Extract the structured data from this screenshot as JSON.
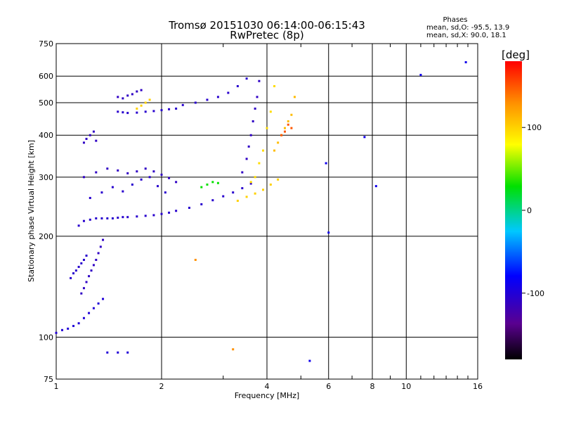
{
  "chart_data": {
    "type": "scatter",
    "title": "Tromsø 20151030 06:14:00-06:15:43",
    "subtitle": "RwPretec (8p)",
    "stats": {
      "header": "Phases",
      "line1": "mean, sd,O:  -95.5, 13.9",
      "line2": "mean, sd,X:  90.0, 18.1"
    },
    "xlabel": "Frequency [MHz]",
    "ylabel": "Stationary phase Virtual Height [km]",
    "x_scale": "log",
    "y_scale": "log",
    "xlim": [
      1,
      16
    ],
    "ylim": [
      75,
      750
    ],
    "x_ticks": [
      1,
      2,
      4,
      6,
      8,
      10,
      16
    ],
    "y_ticks": [
      75,
      100,
      200,
      300,
      400,
      500,
      600,
      750
    ],
    "grid": true,
    "colorbar": {
      "label": "[deg]",
      "range": [
        -180,
        180
      ],
      "ticks": [
        100,
        0,
        -100
      ]
    },
    "series": [
      {
        "x": [
          1.0,
          1.04,
          1.08,
          1.12,
          1.16,
          1.2,
          1.24,
          1.28,
          1.32,
          1.36
        ],
        "y": [
          103,
          105,
          106,
          108,
          110,
          114,
          118,
          122,
          126,
          130
        ],
        "phase": -100
      },
      {
        "x": [
          1.18,
          1.2,
          1.22,
          1.24,
          1.26,
          1.28,
          1.3,
          1.32,
          1.34,
          1.36
        ],
        "y": [
          135,
          140,
          146,
          152,
          158,
          164,
          170,
          178,
          186,
          195
        ],
        "phase": -110
      },
      {
        "x": [
          1.1,
          1.12,
          1.14,
          1.16,
          1.18,
          1.2,
          1.22
        ],
        "y": [
          150,
          155,
          158,
          162,
          166,
          170,
          175
        ],
        "phase": -105
      },
      {
        "x": [
          1.2,
          1.22,
          1.25,
          1.28,
          1.3
        ],
        "y": [
          380,
          390,
          400,
          410,
          385
        ],
        "phase": -110
      },
      {
        "x": [
          1.16,
          1.2,
          1.25,
          1.3,
          1.35,
          1.4,
          1.45,
          1.5,
          1.55,
          1.6,
          1.7,
          1.8,
          1.9,
          2.0,
          2.1,
          2.2,
          2.4,
          2.6,
          2.8,
          3.0,
          3.2,
          3.4,
          3.6
        ],
        "y": [
          215,
          222,
          224,
          226,
          226,
          226,
          226,
          227,
          228,
          228,
          229,
          230,
          231,
          233,
          235,
          238,
          243,
          249,
          256,
          263,
          270,
          278,
          287
        ],
        "phase": -105
      },
      {
        "x": [
          1.2,
          1.3,
          1.4,
          1.5,
          1.6,
          1.7,
          1.8,
          1.9,
          2.0,
          2.1,
          2.2
        ],
        "y": [
          300,
          310,
          318,
          314,
          308,
          312,
          318,
          312,
          305,
          298,
          290
        ],
        "phase": -110
      },
      {
        "x": [
          1.25,
          1.35,
          1.45,
          1.55,
          1.65,
          1.75,
          1.85,
          1.95,
          2.05
        ],
        "y": [
          260,
          270,
          280,
          272,
          285,
          295,
          300,
          282,
          270
        ],
        "phase": -105
      },
      {
        "x": [
          1.5,
          1.55,
          1.6,
          1.7,
          1.8,
          1.9,
          2.0,
          2.1,
          2.2
        ],
        "y": [
          470,
          468,
          466,
          467,
          470,
          472,
          475,
          478,
          480
        ],
        "phase": -105
      },
      {
        "x": [
          1.5,
          1.55,
          1.6,
          1.65,
          1.7,
          1.75
        ],
        "y": [
          520,
          515,
          525,
          530,
          540,
          545
        ],
        "phase": -110
      },
      {
        "x": [
          2.3,
          2.5,
          2.7,
          2.9,
          3.1,
          3.3,
          3.5
        ],
        "y": [
          492,
          500,
          510,
          520,
          535,
          560,
          590
        ],
        "phase": -105
      },
      {
        "x": [
          3.4,
          3.5,
          3.55,
          3.6,
          3.65,
          3.7,
          3.75,
          3.8
        ],
        "y": [
          310,
          340,
          370,
          400,
          440,
          480,
          520,
          580
        ],
        "phase": -110
      },
      {
        "x": [
          3.6,
          3.7,
          3.8,
          3.9,
          4.0,
          4.1,
          4.2
        ],
        "y": [
          290,
          300,
          330,
          360,
          420,
          470,
          560
        ],
        "phase": 95
      },
      {
        "x": [
          3.3,
          3.5,
          3.7,
          3.9,
          4.1,
          4.3
        ],
        "y": [
          255,
          262,
          268,
          275,
          285,
          295
        ],
        "phase": 100
      },
      {
        "x": [
          4.2,
          4.3,
          4.4,
          4.5,
          4.6,
          4.7,
          4.8
        ],
        "y": [
          360,
          380,
          400,
          420,
          440,
          460,
          520
        ],
        "phase": 110
      },
      {
        "x": [
          4.4,
          4.5,
          4.6,
          4.7
        ],
        "y": [
          400,
          410,
          430,
          420
        ],
        "phase": 150
      },
      {
        "x": [
          1.7,
          1.75,
          1.8,
          1.85
        ],
        "y": [
          480,
          490,
          500,
          510
        ],
        "phase": 100
      },
      {
        "x": [
          2.6,
          2.7,
          2.8,
          2.9
        ],
        "y": [
          280,
          285,
          290,
          288
        ],
        "phase": 30
      },
      {
        "x": [
          1.4,
          1.5,
          1.6
        ],
        "y": [
          90,
          90,
          90
        ],
        "phase": -100
      },
      {
        "x": [
          2.5,
          3.2
        ],
        "y": [
          170,
          92
        ],
        "phase": 130
      },
      {
        "x": [
          5.3,
          5.9,
          6.0,
          7.6,
          8.2,
          11.0,
          14.8
        ],
        "y": [
          85,
          330,
          205,
          395,
          282,
          605,
          660
        ],
        "phase": -90
      }
    ]
  }
}
